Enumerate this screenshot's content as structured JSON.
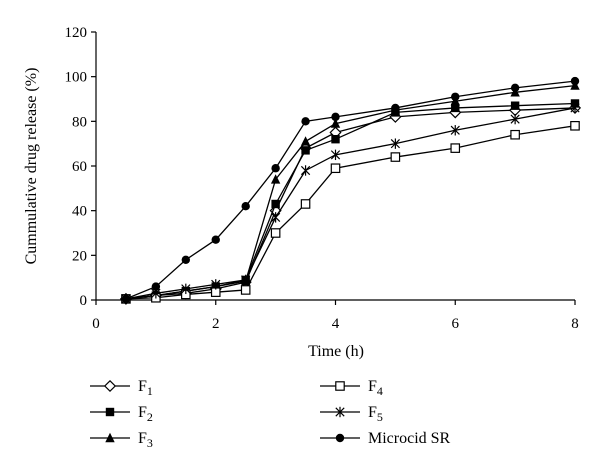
{
  "chart_data": {
    "type": "line",
    "title": "",
    "xlabel": "Time (h)",
    "ylabel": "Cummulative drug release (%)",
    "xlim": [
      0,
      8
    ],
    "ylim": [
      0,
      120
    ],
    "xticks": [
      0,
      2,
      4,
      6,
      8
    ],
    "yticks": [
      0,
      20,
      40,
      60,
      80,
      100,
      120
    ],
    "grid": false,
    "legend_position": "bottom",
    "x": [
      0.5,
      1,
      1.5,
      2,
      2.5,
      3,
      3.5,
      4,
      5,
      6,
      7,
      8
    ],
    "series": [
      {
        "name": "F1",
        "base": "F",
        "sub": "1",
        "marker": "diamond-open",
        "values": [
          0.5,
          2,
          3,
          5,
          8,
          40,
          68,
          75,
          82,
          84,
          85,
          86
        ]
      },
      {
        "name": "F2",
        "base": "F",
        "sub": "2",
        "marker": "square-filled",
        "values": [
          0.5,
          2,
          4,
          6,
          9,
          43,
          67,
          72,
          84,
          86,
          87,
          88
        ]
      },
      {
        "name": "F3",
        "base": "F",
        "sub": "3",
        "marker": "triangle-filled",
        "values": [
          0.5,
          2,
          4,
          6,
          8.5,
          54,
          71,
          79,
          85,
          89,
          93,
          96
        ]
      },
      {
        "name": "F4",
        "base": "F",
        "sub": "4",
        "marker": "square-open",
        "values": [
          0.5,
          1,
          2.5,
          3.5,
          4.5,
          30,
          43,
          59,
          64,
          68,
          74,
          78
        ]
      },
      {
        "name": "F5",
        "base": "F",
        "sub": "5",
        "marker": "star",
        "values": [
          0.5,
          3,
          5,
          7,
          9,
          37,
          58,
          65,
          70,
          76,
          81,
          86
        ]
      },
      {
        "name": "Microcid SR",
        "base": "Microcid SR",
        "sub": "",
        "marker": "circle-filled",
        "values": [
          0.5,
          6,
          18,
          27,
          42,
          59,
          80,
          82,
          86,
          91,
          95,
          98
        ]
      }
    ]
  }
}
